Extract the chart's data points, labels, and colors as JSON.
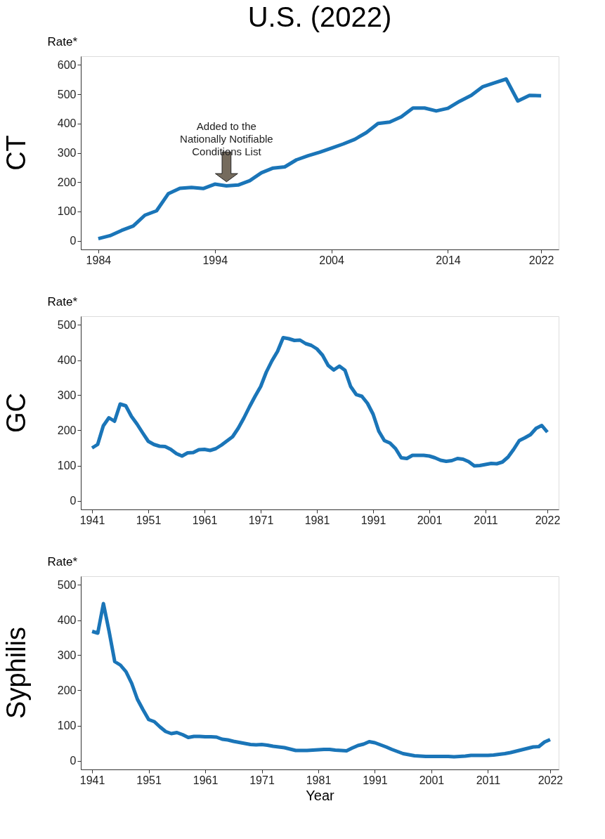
{
  "chart_data": [
    {
      "type": "line",
      "title": "U.S. (2022)",
      "ylabel": "Rate*",
      "annotations": [
        "CT",
        "Added to the\nNationally Notifiable\nConditions List"
      ],
      "x": [
        1984,
        1985,
        1986,
        1987,
        1988,
        1989,
        1990,
        1991,
        1992,
        1993,
        1994,
        1995,
        1996,
        1997,
        1998,
        1999,
        2000,
        2001,
        2002,
        2003,
        2004,
        2005,
        2006,
        2007,
        2008,
        2009,
        2010,
        2011,
        2012,
        2013,
        2014,
        2015,
        2016,
        2017,
        2018,
        2019,
        2020,
        2021,
        2022
      ],
      "series": [
        {
          "color": "#1a75b8",
          "values": [
            7,
            17,
            35,
            50,
            87,
            102,
            160,
            179,
            182,
            178,
            193,
            187,
            190,
            205,
            232,
            248,
            252,
            276,
            290,
            302,
            316,
            330,
            346,
            369,
            400,
            405,
            423,
            453,
            453,
            443,
            452,
            476,
            496,
            526,
            539,
            552,
            477,
            496,
            495
          ]
        }
      ],
      "xlim": [
        1982.5,
        2023.5
      ],
      "ylim": [
        -30,
        630
      ],
      "xticks": [
        1984,
        1994,
        2004,
        2014,
        2022
      ],
      "yticks": [
        0,
        100,
        200,
        300,
        400,
        500,
        600
      ],
      "grid": false
    },
    {
      "type": "line",
      "ylabel": "Rate*",
      "annotations": [
        "GC"
      ],
      "x": [
        1941,
        1942,
        1943,
        1944,
        1945,
        1946,
        1947,
        1948,
        1949,
        1950,
        1951,
        1952,
        1953,
        1954,
        1955,
        1956,
        1957,
        1958,
        1959,
        1960,
        1961,
        1962,
        1963,
        1964,
        1965,
        1966,
        1967,
        1968,
        1969,
        1970,
        1971,
        1972,
        1973,
        1974,
        1975,
        1976,
        1977,
        1978,
        1979,
        1980,
        1981,
        1982,
        1983,
        1984,
        1985,
        1986,
        1987,
        1988,
        1989,
        1990,
        1991,
        1992,
        1993,
        1994,
        1995,
        1996,
        1997,
        1998,
        1999,
        2000,
        2001,
        2002,
        2003,
        2004,
        2005,
        2006,
        2007,
        2008,
        2009,
        2010,
        2011,
        2012,
        2013,
        2014,
        2015,
        2016,
        2017,
        2018,
        2019,
        2020,
        2021,
        2022
      ],
      "series": [
        {
          "color": "#1a75b8",
          "values": [
            150,
            160,
            213,
            236,
            226,
            275,
            270,
            240,
            218,
            193,
            169,
            160,
            155,
            154,
            146,
            134,
            127,
            136,
            137,
            145,
            146,
            143,
            148,
            158,
            170,
            182,
            206,
            235,
            267,
            297,
            325,
            366,
            398,
            425,
            464,
            461,
            456,
            457,
            447,
            442,
            432,
            414,
            385,
            372,
            383,
            371,
            325,
            302,
            297,
            277,
            246,
            198,
            171,
            164,
            148,
            122,
            120,
            129,
            129,
            129,
            127,
            122,
            115,
            112,
            114,
            120,
            118,
            111,
            99,
            100,
            103,
            106,
            105,
            110,
            124,
            146,
            171,
            179,
            188,
            206,
            214,
            195
          ]
        }
      ],
      "xlim": [
        1939,
        2024
      ],
      "ylim": [
        -25,
        525
      ],
      "xticks": [
        1941,
        1951,
        1961,
        1971,
        1981,
        1991,
        2001,
        2011,
        2022
      ],
      "yticks": [
        0,
        100,
        200,
        300,
        400,
        500
      ],
      "grid": false
    },
    {
      "type": "line",
      "ylabel": "Rate*",
      "xlabel": "Year",
      "annotations": [
        "Syphilis"
      ],
      "x": [
        1941,
        1942,
        1943,
        1944,
        1945,
        1946,
        1947,
        1948,
        1949,
        1950,
        1951,
        1952,
        1953,
        1954,
        1955,
        1956,
        1957,
        1958,
        1959,
        1960,
        1961,
        1962,
        1963,
        1964,
        1965,
        1966,
        1967,
        1968,
        1969,
        1970,
        1971,
        1972,
        1973,
        1974,
        1975,
        1976,
        1977,
        1978,
        1979,
        1980,
        1981,
        1982,
        1983,
        1984,
        1985,
        1986,
        1987,
        1988,
        1989,
        1990,
        1991,
        1992,
        1993,
        1994,
        1995,
        1996,
        1997,
        1998,
        1999,
        2000,
        2001,
        2002,
        2003,
        2004,
        2005,
        2006,
        2007,
        2008,
        2009,
        2010,
        2011,
        2012,
        2013,
        2014,
        2015,
        2016,
        2017,
        2018,
        2019,
        2020,
        2021,
        2022
      ],
      "series": [
        {
          "color": "#1a75b8",
          "values": [
            368,
            363,
            447,
            368,
            282,
            272,
            253,
            220,
            175,
            145,
            117,
            111,
            96,
            83,
            77,
            80,
            74,
            66,
            69,
            69,
            68,
            68,
            67,
            61,
            59,
            55,
            52,
            49,
            46,
            45,
            46,
            44,
            41,
            39,
            37,
            33,
            29,
            29,
            29,
            30,
            31,
            32,
            32,
            30,
            29,
            28,
            36,
            43,
            47,
            54,
            51,
            45,
            39,
            32,
            26,
            20,
            17,
            14,
            13,
            12,
            12,
            12,
            12,
            12,
            11,
            12,
            13,
            15,
            15,
            15,
            15,
            16,
            18,
            20,
            23,
            27,
            31,
            35,
            39,
            40,
            53,
            60
          ]
        }
      ],
      "xlim": [
        1939,
        2023.5
      ],
      "ylim": [
        -25,
        525
      ],
      "xticks": [
        1941,
        1951,
        1961,
        1971,
        1981,
        1991,
        2001,
        2011,
        2022
      ],
      "yticks": [
        0,
        100,
        200,
        300,
        400,
        500
      ],
      "grid": false
    }
  ]
}
